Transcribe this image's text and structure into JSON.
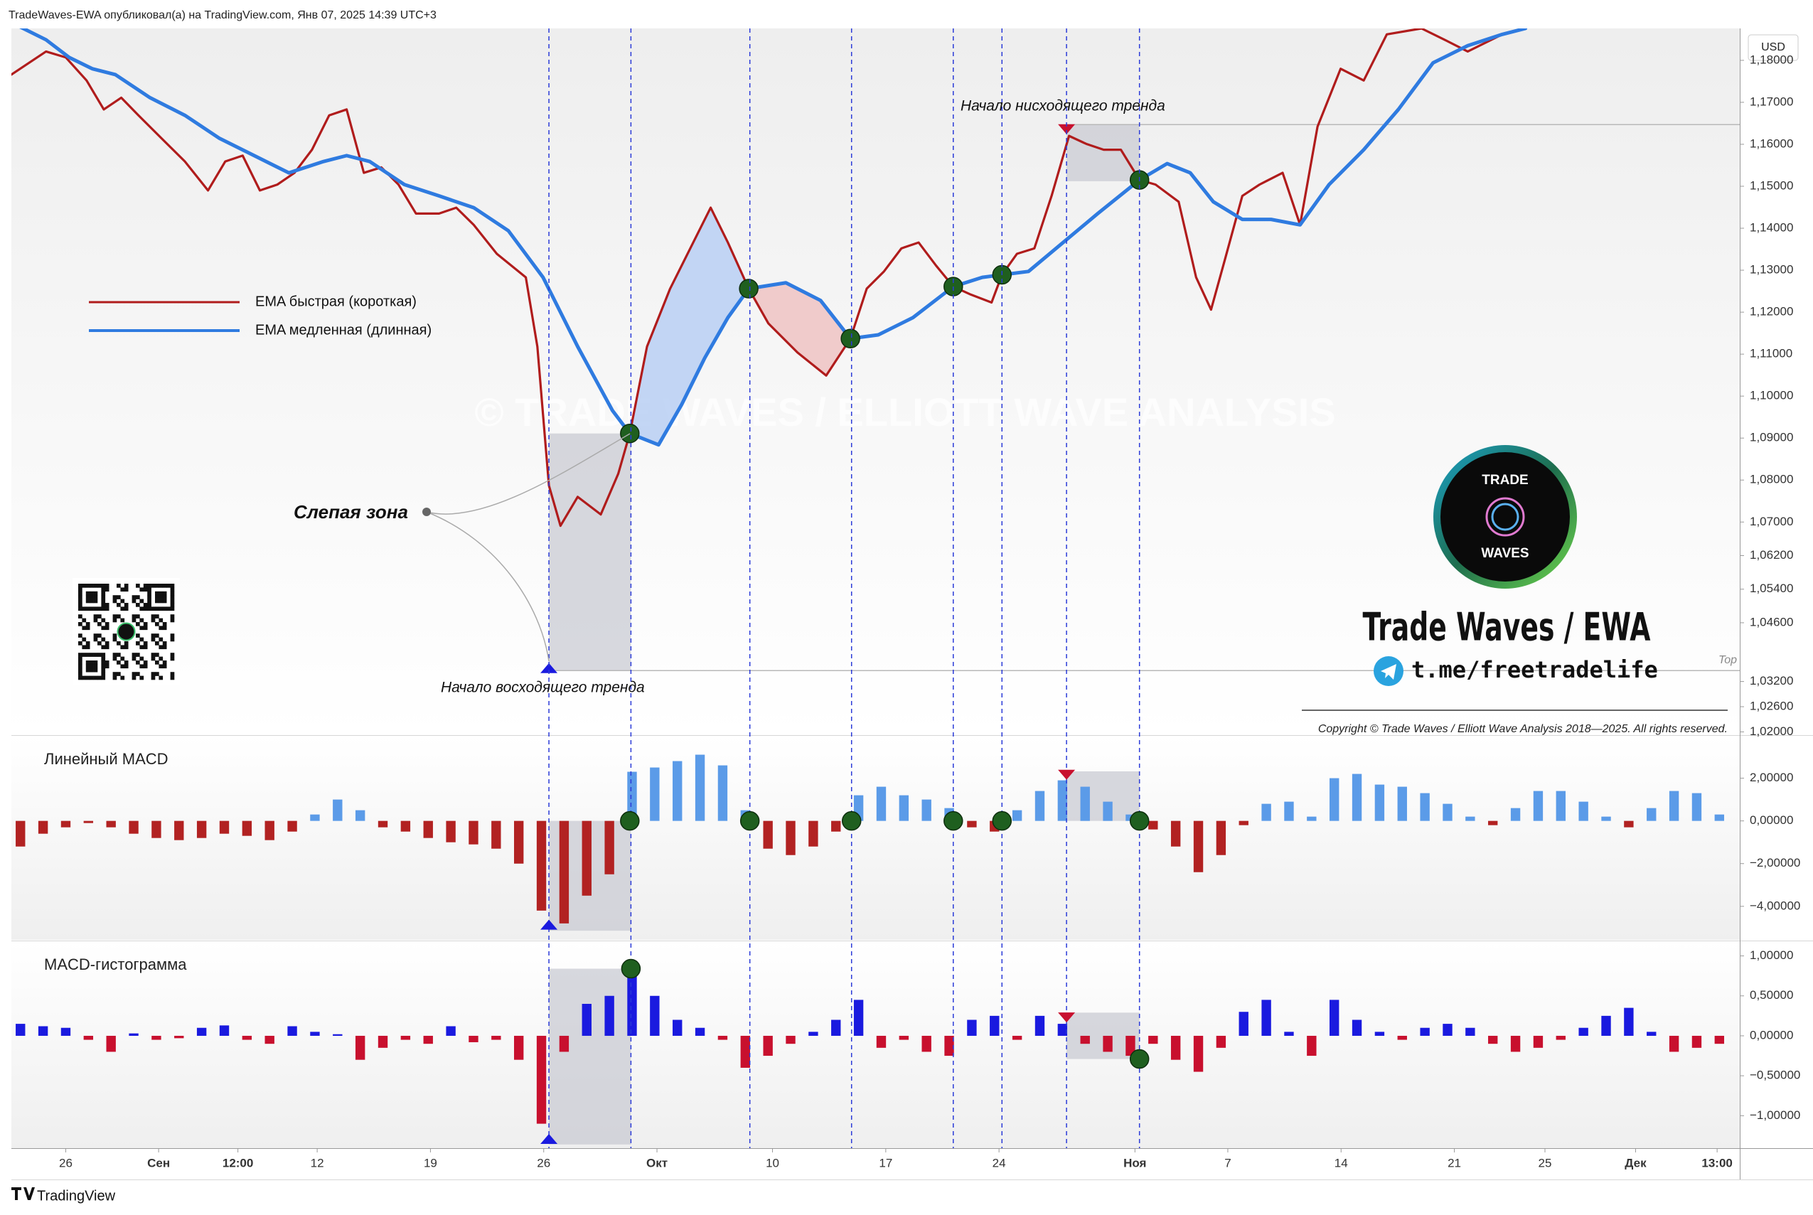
{
  "header": {
    "publisher": "TradeWaves-EWA опубликовал(а) на TradingView.com, Янв 07, 2025 14:39 UTC+3",
    "currency": "USD"
  },
  "chart_data": [
    {
      "type": "line",
      "legend": "left",
      "xlim": [
        -2.4,
        73.9
      ],
      "ylim": [
        1.0194,
        1.1876
      ],
      "yticks": [
        {
          "value": 1.18,
          "label": "1,18000"
        },
        {
          "value": 1.17,
          "label": "1,17000"
        },
        {
          "value": 1.16,
          "label": "1,16000"
        },
        {
          "value": 1.15,
          "label": "1,15000"
        },
        {
          "value": 1.14,
          "label": "1,14000"
        },
        {
          "value": 1.13,
          "label": "1,13000"
        },
        {
          "value": 1.12,
          "label": "1,12000"
        },
        {
          "value": 1.11,
          "label": "1,11000"
        },
        {
          "value": 1.1,
          "label": "1,10000"
        },
        {
          "value": 1.09,
          "label": "1,09000"
        },
        {
          "value": 1.08,
          "label": "1,08000"
        },
        {
          "value": 1.07,
          "label": "1,07000"
        },
        {
          "value": 1.062,
          "label": "1,06200"
        },
        {
          "value": 1.054,
          "label": "1,05400"
        },
        {
          "value": 1.046,
          "label": "1,04600"
        },
        {
          "value": 1.032,
          "label": "1,03200"
        },
        {
          "value": 1.026,
          "label": "1,02600"
        },
        {
          "value": 1.02,
          "label": "1,02000"
        }
      ],
      "series": [
        {
          "name": "EMA быстрая (короткая)",
          "color": "#b01c1c",
          "x": [
            -2.4,
            -0.87,
            0,
            0.92,
            1.68,
            2.45,
            3.21,
            4.23,
            5.26,
            6.28,
            7.04,
            7.81,
            8.57,
            9.34,
            10.1,
            10.87,
            11.63,
            12.4,
            13.16,
            13.93,
            14.69,
            15.46,
            16.48,
            17.24,
            18.01,
            19.03,
            20.31,
            20.82,
            21.33,
            21.84,
            22.6,
            23.62,
            24.39,
            24.9,
            25.66,
            26.68,
            27.7,
            28.47,
            29.23,
            30.15,
            31.02,
            32.3,
            33.57,
            34.64,
            35.36,
            36.12,
            36.89,
            37.65,
            38.42,
            39.18,
            39.95,
            40.87,
            41.33,
            41.99,
            42.76,
            43.52,
            44.29,
            45.05,
            45.82,
            46.58,
            47.4,
            48.11,
            49.13,
            49.9,
            50.56,
            51.17,
            51.94,
            52.7,
            53.72,
            54.49,
            55.26,
            56.28,
            57.3,
            58.32,
            59.85,
            60.87,
            61.89,
            63.42,
            64.44
          ],
          "values": [
            1.1766,
            1.1821,
            1.1807,
            1.1752,
            1.1683,
            1.1711,
            1.1669,
            1.1614,
            1.1559,
            1.149,
            1.1559,
            1.1573,
            1.149,
            1.1504,
            1.1532,
            1.1587,
            1.1669,
            1.1683,
            1.1532,
            1.1545,
            1.1504,
            1.1435,
            1.1435,
            1.1449,
            1.1408,
            1.1339,
            1.1283,
            1.1118,
            1.0787,
            1.0691,
            1.076,
            1.0718,
            1.0815,
            1.0911,
            1.1118,
            1.1256,
            1.1366,
            1.1449,
            1.1366,
            1.1256,
            1.1173,
            1.1104,
            1.1049,
            1.1137,
            1.1256,
            1.1297,
            1.1352,
            1.1366,
            1.1311,
            1.1261,
            1.1242,
            1.1223,
            1.1289,
            1.1339,
            1.1352,
            1.1477,
            1.162,
            1.1601,
            1.1587,
            1.1587,
            1.1515,
            1.1504,
            1.1463,
            1.1283,
            1.1206,
            1.1325,
            1.1477,
            1.1504,
            1.1532,
            1.1408,
            1.1642,
            1.178,
            1.1752,
            1.1862,
            1.1876,
            1.1849,
            1.1821,
            1.1862,
            1.1876
          ]
        },
        {
          "name": "EMA медленная (длинная)",
          "color": "#2f7be0",
          "x": [
            -2.4,
            -0.87,
            0.15,
            1.17,
            2.19,
            3.72,
            5.26,
            6.79,
            8.32,
            9.85,
            11.38,
            12.4,
            13.42,
            14.95,
            16.48,
            18.01,
            19.54,
            21.07,
            22.6,
            24.13,
            24.9,
            26.17,
            27.19,
            28.21,
            29.23,
            30.15,
            31.79,
            33.32,
            34.64,
            35.87,
            37.4,
            39.18,
            40.46,
            41.33,
            42.5,
            44.03,
            45.56,
            47.4,
            48.62,
            49.64,
            50.66,
            51.94,
            53.21,
            54.49,
            55.77,
            57.3,
            58.83,
            60.36,
            61.89,
            63.42,
            64.44
          ],
          "values": [
            1.189,
            1.1849,
            1.1807,
            1.178,
            1.1766,
            1.1711,
            1.1669,
            1.1614,
            1.1573,
            1.1532,
            1.1559,
            1.1573,
            1.1559,
            1.1504,
            1.1477,
            1.1449,
            1.1394,
            1.1283,
            1.1118,
            1.0966,
            1.0911,
            1.0884,
            1.098,
            1.1091,
            1.1187,
            1.1256,
            1.127,
            1.1228,
            1.1137,
            1.1146,
            1.1187,
            1.1261,
            1.1283,
            1.1289,
            1.1297,
            1.1366,
            1.1435,
            1.1515,
            1.1554,
            1.1532,
            1.1463,
            1.1421,
            1.1421,
            1.1408,
            1.1504,
            1.1587,
            1.1683,
            1.1794,
            1.1835,
            1.1862,
            1.1876
          ]
        }
      ],
      "fills": [
        {
          "x": [
            24.9,
            30.15
          ],
          "color": "#b9cff3"
        },
        {
          "x": [
            30.15,
            34.64
          ],
          "color": "#eec3c3"
        }
      ],
      "vlines": [
        21.33,
        24.95,
        30.2,
        34.69,
        39.18,
        41.33,
        44.18,
        47.4
      ],
      "zones": [
        {
          "x": [
            21.33,
            24.95
          ],
          "y": [
            1.0346,
            1.0911
          ]
        },
        {
          "x": [
            44.18,
            47.4
          ],
          "y": [
            1.1512,
            1.1647
          ]
        }
      ],
      "hlines": [
        {
          "x": 21.33,
          "y": 1.0346
        },
        {
          "x": 44.18,
          "y": 1.1647
        }
      ],
      "crossings": {
        "color": "#1f5f1f",
        "x": [
          24.9,
          30.15,
          34.64,
          39.18,
          41.33,
          47.4
        ],
        "y": [
          1.0911,
          1.1256,
          1.1137,
          1.1261,
          1.1289,
          1.1515
        ]
      },
      "markers": [
        {
          "x": 21.33,
          "y": 1.0352,
          "dir": "up",
          "color": "#1a1adf"
        },
        {
          "x": 44.18,
          "y": 1.1636,
          "dir": "down",
          "color": "#c8102e"
        }
      ]
    },
    {
      "type": "bar",
      "title": "Линейный MACD",
      "colors": {
        "positive": "#5b9be8",
        "negative": "#b22222"
      },
      "xlim": [
        -2.4,
        73.9
      ],
      "ylim": [
        -5.57,
        3.95
      ],
      "yticks": [
        {
          "value": 2,
          "label": "2,00000"
        },
        {
          "value": 0,
          "label": "0,00000"
        },
        {
          "value": -2,
          "label": "−2,00000"
        },
        {
          "value": -4,
          "label": "−4,00000"
        }
      ],
      "x": [
        -2,
        -1,
        0,
        1,
        2,
        3,
        4,
        5,
        6,
        7,
        8,
        9,
        10,
        11,
        12,
        13,
        14,
        15,
        16,
        17,
        18,
        19,
        20,
        21,
        22,
        23,
        24,
        25,
        26,
        27,
        28,
        29,
        30,
        31,
        32,
        33,
        34,
        35,
        36,
        37,
        38,
        39,
        40,
        41,
        42,
        43,
        44,
        45,
        46,
        47,
        48,
        49,
        50,
        51,
        52,
        53,
        54,
        55,
        56,
        57,
        58,
        59,
        60,
        61,
        62,
        63,
        64,
        65,
        66,
        67,
        68,
        69,
        70,
        71,
        72,
        73
      ],
      "values": [
        -1.2,
        -0.6,
        -0.3,
        -0.1,
        -0.3,
        -0.6,
        -0.8,
        -0.9,
        -0.8,
        -0.6,
        -0.7,
        -0.9,
        -0.5,
        0.3,
        1,
        0.5,
        -0.3,
        -0.5,
        -0.8,
        -1,
        -1.1,
        -1.3,
        -2,
        -4.2,
        -4.8,
        -3.5,
        -2.5,
        2.3,
        2.5,
        2.8,
        3.1,
        2.6,
        0.5,
        -1.3,
        -1.6,
        -1.2,
        -0.5,
        1.2,
        1.6,
        1.2,
        1,
        0.6,
        -0.3,
        -0.5,
        0.5,
        1.4,
        1.9,
        1.6,
        0.9,
        0.3,
        -0.4,
        -1.2,
        -2.4,
        -1.6,
        -0.2,
        0.8,
        0.9,
        0.2,
        2,
        2.2,
        1.7,
        1.6,
        1.3,
        0.8,
        0.2,
        -0.2,
        0.6,
        1.4,
        1.4,
        0.9,
        0.2,
        -0.3,
        0.6,
        1.4,
        1.3,
        0.3
      ],
      "zones": [
        {
          "x": [
            21.33,
            24.95
          ],
          "y": [
            -5.14,
            0
          ]
        },
        {
          "x": [
            44.18,
            47.4
          ],
          "y": [
            0,
            2.32
          ]
        }
      ],
      "crossings": {
        "color": "#1f5f1f",
        "x": [
          24.9,
          30.2,
          34.69,
          39.18,
          41.33,
          47.4
        ],
        "y": [
          0,
          0,
          0,
          0,
          0,
          0
        ]
      },
      "markers": [
        {
          "x": 21.33,
          "y": -4.86,
          "dir": "up",
          "color": "#1a1adf"
        },
        {
          "x": 44.18,
          "y": 2.16,
          "dir": "down",
          "color": "#c8102e"
        }
      ]
    },
    {
      "type": "bar",
      "title": "MACD-гистограмма",
      "colors": {
        "positive": "#1a1adf",
        "negative": "#c8102e"
      },
      "xlim": [
        -2.4,
        73.9
      ],
      "ylim": [
        -1.406,
        1.174
      ],
      "yticks": [
        {
          "value": 1,
          "label": "1,00000"
        },
        {
          "value": 0.5,
          "label": "0,50000"
        },
        {
          "value": 0,
          "label": "0,00000"
        },
        {
          "value": -0.5,
          "label": "−0,50000"
        },
        {
          "value": -1,
          "label": "−1,00000"
        }
      ],
      "xticks": [
        {
          "value": 0,
          "label": "26"
        },
        {
          "value": 4.1,
          "label": "Сен"
        },
        {
          "value": 7.6,
          "label": "12:00"
        },
        {
          "value": 11.1,
          "label": "12"
        },
        {
          "value": 16.1,
          "label": "19"
        },
        {
          "value": 21.1,
          "label": "26"
        },
        {
          "value": 26.1,
          "label": "Окт"
        },
        {
          "value": 31.2,
          "label": "10"
        },
        {
          "value": 36.2,
          "label": "17"
        },
        {
          "value": 41.2,
          "label": "24"
        },
        {
          "value": 47.2,
          "label": "Ноя"
        },
        {
          "value": 51.3,
          "label": "7"
        },
        {
          "value": 56.3,
          "label": "14"
        },
        {
          "value": 61.3,
          "label": "21"
        },
        {
          "value": 65.3,
          "label": "25"
        },
        {
          "value": 69.3,
          "label": "Дек"
        },
        {
          "value": 72.9,
          "label": "13:00"
        }
      ],
      "x": [
        -2,
        -1,
        0,
        1,
        2,
        3,
        4,
        5,
        6,
        7,
        8,
        9,
        10,
        11,
        12,
        13,
        14,
        15,
        16,
        17,
        18,
        19,
        20,
        21,
        22,
        23,
        24,
        25,
        26,
        27,
        28,
        29,
        30,
        31,
        32,
        33,
        34,
        35,
        36,
        37,
        38,
        39,
        40,
        41,
        42,
        43,
        44,
        45,
        46,
        47,
        48,
        49,
        50,
        51,
        52,
        53,
        54,
        55,
        56,
        57,
        58,
        59,
        60,
        61,
        62,
        63,
        64,
        65,
        66,
        67,
        68,
        69,
        70,
        71,
        72,
        73
      ],
      "values": [
        0.15,
        0.12,
        0.1,
        -0.05,
        -0.2,
        0.03,
        -0.05,
        -0.03,
        0.1,
        0.13,
        -0.05,
        -0.1,
        0.12,
        0.05,
        0.02,
        -0.3,
        -0.15,
        -0.05,
        -0.1,
        0.12,
        -0.08,
        -0.05,
        -0.3,
        -1.1,
        -0.2,
        0.4,
        0.5,
        0.75,
        0.5,
        0.2,
        0.1,
        -0.05,
        -0.4,
        -0.25,
        -0.1,
        0.05,
        0.2,
        0.45,
        -0.15,
        -0.05,
        -0.2,
        -0.25,
        0.2,
        0.25,
        -0.05,
        0.25,
        0.15,
        -0.1,
        -0.2,
        -0.25,
        -0.1,
        -0.3,
        -0.45,
        -0.15,
        0.3,
        0.45,
        0.05,
        -0.25,
        0.45,
        0.2,
        0.05,
        -0.05,
        0.1,
        0.15,
        0.1,
        -0.1,
        -0.2,
        -0.15,
        -0.05,
        0.1,
        0.25,
        0.35,
        0.05,
        -0.2,
        -0.15,
        -0.1
      ],
      "zones": [
        {
          "x": [
            21.33,
            24.95
          ],
          "y": [
            -1.36,
            0.84
          ]
        },
        {
          "x": [
            44.18,
            47.4
          ],
          "y": [
            -0.29,
            0.29
          ]
        }
      ],
      "crossings": {
        "color": "#1f5f1f",
        "x": [
          24.95,
          47.4
        ],
        "y": [
          0.84,
          -0.29
        ]
      },
      "markers": [
        {
          "x": 21.33,
          "y": -1.29,
          "dir": "up",
          "color": "#1a1adf"
        },
        {
          "x": 44.18,
          "y": 0.23,
          "dir": "down",
          "color": "#c8102e"
        }
      ]
    }
  ],
  "annotations": {
    "blind_zone": "Слепая зона",
    "downtrend_start": "Начало нисходящего тренда",
    "uptrend_start": "Начало восходящего тренда",
    "top": "Top",
    "watermark": "© TRADE WAVES / ELLIOTT WAVE ANALYSIS"
  },
  "branding": {
    "logo_top": "TRADE",
    "logo_bottom": "WAVES",
    "name": "Trade Waves / EWA",
    "telegram": "t.me/freetradelife",
    "copyright": "Copyright © Trade Waves / Elliott Wave Analysis 2018—2025. All rights reserved."
  },
  "footer": {
    "brand": "TradingView"
  }
}
